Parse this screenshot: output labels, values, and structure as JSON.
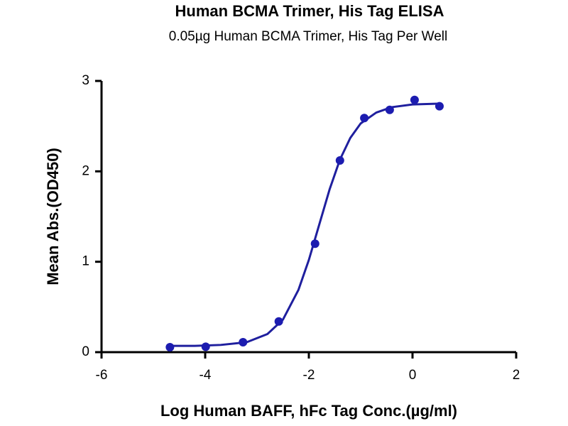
{
  "chart_data": {
    "type": "scatter-curve",
    "title": "Human BCMA Trimer, His Tag ELISA",
    "subtitle": "0.05µg Human BCMA Trimer, His Tag Per Well",
    "x_label": "Log Human BAFF, hFc Tag Conc.(µg/ml)",
    "y_label": "Mean Abs.(OD450)",
    "xlim": [
      -6,
      2
    ],
    "xticks": [
      -6,
      -4,
      -2,
      0,
      2
    ],
    "ylim": [
      0,
      3
    ],
    "yticks": [
      0,
      1,
      2,
      3
    ],
    "grid": false,
    "points": {
      "color": "#1c1cb0",
      "x": [
        -4.68,
        -3.99,
        -3.27,
        -2.58,
        -1.88,
        -1.4,
        -0.93,
        -0.44,
        0.04,
        0.52
      ],
      "values": [
        0.055,
        0.06,
        0.11,
        0.34,
        1.2,
        2.12,
        2.59,
        2.68,
        2.79,
        2.72
      ]
    },
    "curve": {
      "color": "#1f1f9e",
      "x": [
        -4.7,
        -4.2,
        -3.7,
        -3.2,
        -2.8,
        -2.5,
        -2.2,
        -2.0,
        -1.8,
        -1.6,
        -1.4,
        -1.2,
        -1.0,
        -0.7,
        -0.4,
        0,
        0.55
      ],
      "values": [
        0.07,
        0.07,
        0.08,
        0.11,
        0.2,
        0.36,
        0.69,
        1.02,
        1.41,
        1.8,
        2.13,
        2.37,
        2.53,
        2.65,
        2.71,
        2.74,
        2.75
      ]
    }
  }
}
